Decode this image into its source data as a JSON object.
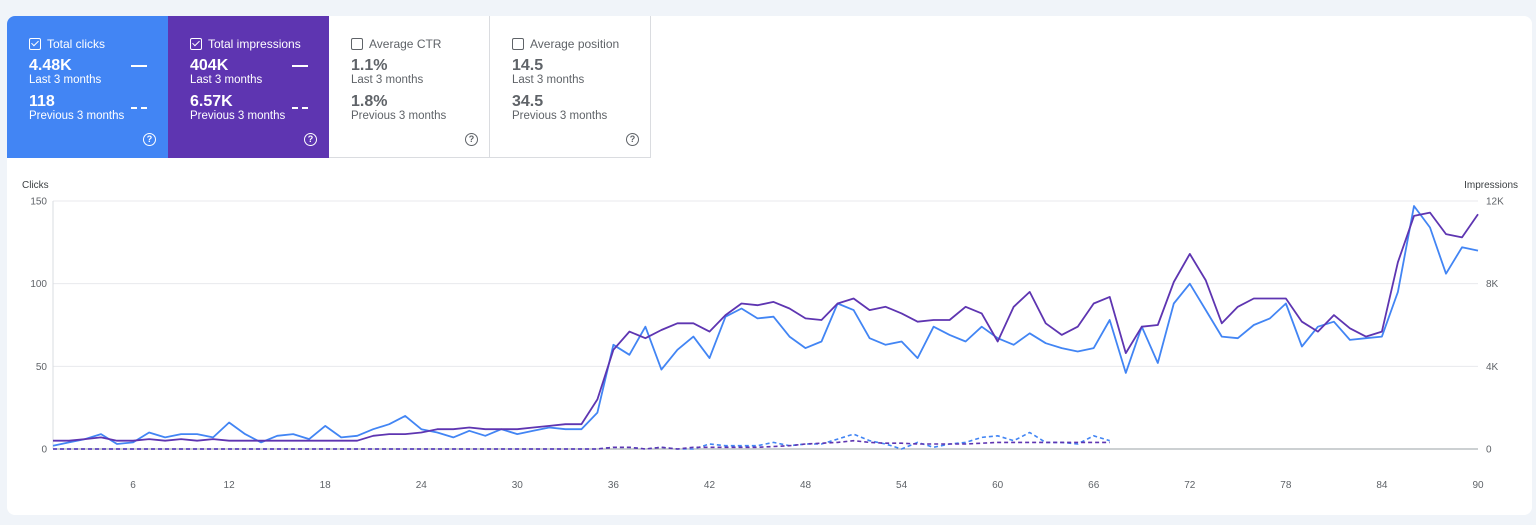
{
  "metrics": [
    {
      "id": "clicks",
      "label": "Total clicks",
      "checked": true,
      "value": "4.48K",
      "period": "Last 3 months",
      "prev_value": "118",
      "prev_period": "Previous 3 months",
      "color": "#4285f4"
    },
    {
      "id": "impressions",
      "label": "Total impressions",
      "checked": true,
      "value": "404K",
      "period": "Last 3 months",
      "prev_value": "6.57K",
      "prev_period": "Previous 3 months",
      "color": "#5e35b1"
    },
    {
      "id": "ctr",
      "label": "Average CTR",
      "checked": false,
      "value": "1.1%",
      "period": "Last 3 months",
      "prev_value": "1.8%",
      "prev_period": "Previous 3 months"
    },
    {
      "id": "position",
      "label": "Average position",
      "checked": false,
      "value": "14.5",
      "period": "Last 3 months",
      "prev_value": "34.5",
      "prev_period": "Previous 3 months"
    }
  ],
  "help_glyph": "?",
  "chart_data": {
    "type": "line",
    "ylabel_left": "Clicks",
    "ylabel_right": "Impressions",
    "ylim_left": [
      0,
      150
    ],
    "ylim_right": [
      0,
      12000
    ],
    "yticks_left": [
      "0",
      "50",
      "100",
      "150"
    ],
    "yticks_right": [
      "0",
      "4K",
      "8K",
      "12K"
    ],
    "xlim": [
      1,
      90
    ],
    "xticks": [
      6,
      12,
      18,
      24,
      30,
      36,
      42,
      48,
      54,
      60,
      66,
      72,
      78,
      84,
      90
    ],
    "grid": true,
    "series": [
      {
        "metric": "clicks",
        "axis": "left",
        "style": "solid",
        "color": "#4285f4",
        "values": [
          2,
          4,
          6,
          9,
          3,
          4,
          10,
          7,
          9,
          9,
          7,
          16,
          9,
          4,
          8,
          9,
          6,
          14,
          7,
          8,
          12,
          15,
          20,
          12,
          10,
          7,
          11,
          8,
          12,
          9,
          11,
          13,
          12,
          12,
          22,
          63,
          57,
          74,
          48,
          60,
          68,
          55,
          80,
          85,
          79,
          80,
          68,
          61,
          65,
          88,
          84,
          67,
          63,
          65,
          55,
          74,
          69,
          65,
          74,
          67,
          63,
          70,
          64,
          61,
          59,
          61,
          78,
          46,
          74,
          52,
          88,
          100,
          84,
          68,
          67,
          75,
          79,
          88,
          62,
          74,
          77,
          66,
          67,
          68,
          95,
          147,
          134,
          106,
          122,
          120
        ]
      },
      {
        "metric": "impressions",
        "axis": "right",
        "style": "solid",
        "color": "#5e35b1",
        "values": [
          400,
          400,
          480,
          560,
          400,
          400,
          480,
          400,
          480,
          400,
          480,
          400,
          400,
          400,
          400,
          400,
          400,
          400,
          400,
          400,
          640,
          720,
          720,
          800,
          960,
          960,
          1040,
          960,
          960,
          960,
          1040,
          1120,
          1200,
          1200,
          2400,
          4800,
          5680,
          5360,
          5760,
          6080,
          6080,
          5680,
          6480,
          7040,
          6960,
          7120,
          6800,
          6320,
          6240,
          7040,
          7280,
          6720,
          6880,
          6560,
          6160,
          6240,
          6240,
          6880,
          6560,
          5200,
          6880,
          7600,
          6080,
          5520,
          5920,
          7040,
          7360,
          4640,
          5920,
          6000,
          8080,
          9440,
          8160,
          6080,
          6880,
          7280,
          7280,
          7280,
          6160,
          5680,
          6480,
          5840,
          5440,
          5680,
          9040,
          11280,
          11440,
          10400,
          10240,
          11360
        ]
      },
      {
        "metric": "clicks",
        "period": "previous",
        "axis": "left",
        "style": "dashed",
        "color": "#4285f4",
        "values": [
          0,
          0,
          0,
          0,
          0,
          0,
          0,
          0,
          0,
          0,
          0,
          0,
          0,
          0,
          0,
          0,
          0,
          0,
          0,
          0,
          0,
          0,
          0,
          0,
          0,
          0,
          0,
          0,
          0,
          0,
          0,
          0,
          0,
          0,
          0,
          1,
          1,
          0,
          1,
          0,
          0,
          3,
          2,
          2,
          2,
          4,
          2,
          3,
          3,
          6,
          9,
          5,
          3,
          0,
          4,
          1,
          3,
          4,
          7,
          8,
          5,
          10,
          4,
          4,
          3,
          8,
          5
        ]
      },
      {
        "metric": "impressions",
        "period": "previous",
        "axis": "right",
        "style": "dashed",
        "color": "#5e35b1",
        "values": [
          0,
          0,
          0,
          0,
          0,
          0,
          0,
          0,
          0,
          0,
          0,
          0,
          0,
          0,
          0,
          0,
          0,
          0,
          0,
          0,
          0,
          0,
          0,
          0,
          0,
          0,
          0,
          0,
          0,
          0,
          0,
          0,
          0,
          0,
          0,
          80,
          80,
          0,
          80,
          0,
          80,
          80,
          80,
          80,
          80,
          120,
          160,
          240,
          280,
          320,
          400,
          320,
          280,
          280,
          240,
          240,
          240,
          240,
          280,
          320,
          320,
          320,
          320,
          320,
          320,
          320,
          320
        ]
      }
    ]
  }
}
